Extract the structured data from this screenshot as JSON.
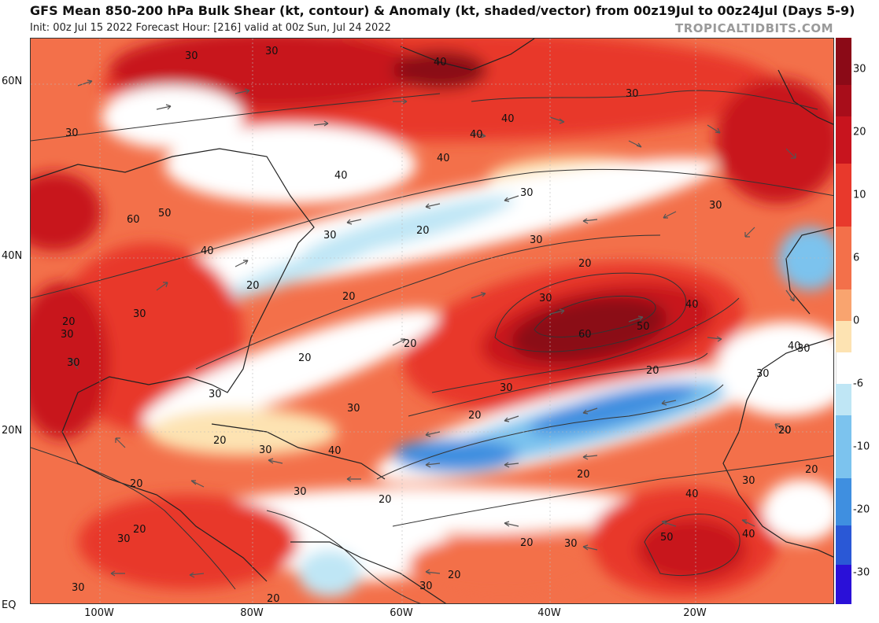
{
  "header": {
    "title": "GFS Mean 850-200 hPa Bulk Shear (kt, contour) & Anomaly (kt, shaded/vector) from 00z19Jul to 00z24Jul (Days 5-9)",
    "subtitle": "Init: 00z Jul 15 2022   Forecast Hour: [216]   valid at 00z Sun, Jul 24 2022",
    "credit": "TROPICALTIDBITS.COM"
  },
  "axes": {
    "lat_labels": [
      "60N",
      "40N",
      "20N",
      "EQ"
    ],
    "lon_labels": [
      "100W",
      "80W",
      "60W",
      "40W",
      "20W"
    ]
  },
  "colorbar": {
    "ticks": [
      "30",
      "20",
      "10",
      "6",
      "0",
      "-6",
      "-10",
      "-20",
      "-30"
    ],
    "colors": [
      "#8b0a17",
      "#c8141e",
      "#e8392c",
      "#f3704a",
      "#f9a46f",
      "#fde3b2",
      "#ffffff",
      "#bfe6f5",
      "#7cc3ee",
      "#3f8fe0",
      "#2a58d6",
      "#1f2fe0",
      "#2a10d8"
    ]
  },
  "contour_labels": [
    {
      "text": "30"
    },
    {
      "text": "40"
    },
    {
      "text": "30"
    },
    {
      "text": "40"
    },
    {
      "text": "30"
    },
    {
      "text": "40"
    },
    {
      "text": "30"
    },
    {
      "text": "40"
    },
    {
      "text": "40"
    },
    {
      "text": "50"
    },
    {
      "text": "60"
    },
    {
      "text": "40"
    },
    {
      "text": "30"
    },
    {
      "text": "20"
    },
    {
      "text": "30"
    },
    {
      "text": "20"
    },
    {
      "text": "20"
    },
    {
      "text": "30"
    },
    {
      "text": "30"
    },
    {
      "text": "20"
    },
    {
      "text": "30"
    },
    {
      "text": "20"
    },
    {
      "text": "30"
    },
    {
      "text": "20"
    },
    {
      "text": "20"
    },
    {
      "text": "30"
    },
    {
      "text": "30"
    },
    {
      "text": "40"
    },
    {
      "text": "50"
    },
    {
      "text": "60"
    },
    {
      "text": "40"
    },
    {
      "text": "20"
    },
    {
      "text": "30"
    },
    {
      "text": "20"
    },
    {
      "text": "20"
    },
    {
      "text": "30"
    },
    {
      "text": "40"
    },
    {
      "text": "30"
    },
    {
      "text": "20"
    },
    {
      "text": "20"
    },
    {
      "text": "20"
    },
    {
      "text": "40"
    },
    {
      "text": "50"
    },
    {
      "text": "30"
    },
    {
      "text": "20"
    },
    {
      "text": "30"
    },
    {
      "text": "20"
    },
    {
      "text": "30"
    },
    {
      "text": "30"
    },
    {
      "text": "30"
    },
    {
      "text": "20"
    },
    {
      "text": "20"
    },
    {
      "text": "30"
    },
    {
      "text": "20"
    },
    {
      "text": "40"
    },
    {
      "text": "30"
    },
    {
      "text": "20"
    },
    {
      "text": "20"
    },
    {
      "text": "30"
    },
    {
      "text": "30"
    }
  ]
}
